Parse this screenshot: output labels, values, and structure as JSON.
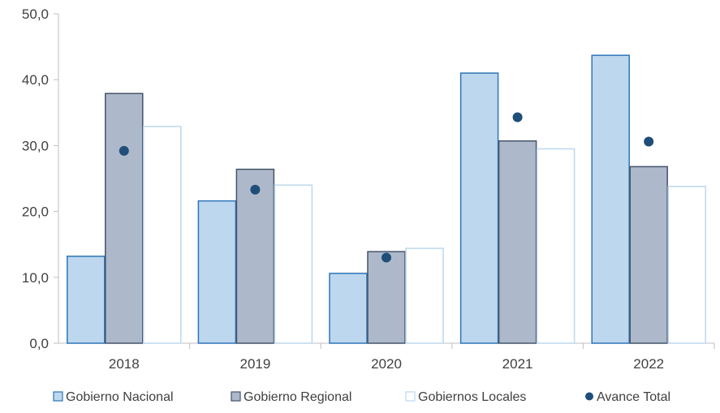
{
  "chart_data": {
    "type": "bar",
    "categories": [
      "2018",
      "2019",
      "2020",
      "2021",
      "2022"
    ],
    "series": [
      {
        "name": "Gobierno Nacional",
        "type": "bar",
        "values": [
          13.2,
          21.6,
          10.6,
          41.0,
          43.7
        ],
        "fill": "#BDD7EE",
        "stroke": "#2E75B6"
      },
      {
        "name": "Gobierno Regional",
        "type": "bar",
        "values": [
          37.9,
          26.4,
          13.9,
          30.7,
          26.8
        ],
        "fill": "#ADB9CA",
        "stroke": "#44546A"
      },
      {
        "name": "Gobiernos Locales",
        "type": "bar",
        "values": [
          32.9,
          24.0,
          14.4,
          29.5,
          23.8
        ],
        "fill": "#FFFFFF",
        "stroke": "#BDD7EE"
      },
      {
        "name": "Avance Total",
        "type": "point",
        "values": [
          29.2,
          23.3,
          13.0,
          34.3,
          30.6
        ],
        "fill": "#1F4E79"
      }
    ],
    "y_ticks": [
      "0,0",
      "10,0",
      "20,0",
      "30,0",
      "40,0",
      "50,0"
    ],
    "ylim": [
      0,
      50
    ],
    "grid": false,
    "legend_position": "bottom",
    "axis_color": "#BFBFBF"
  }
}
